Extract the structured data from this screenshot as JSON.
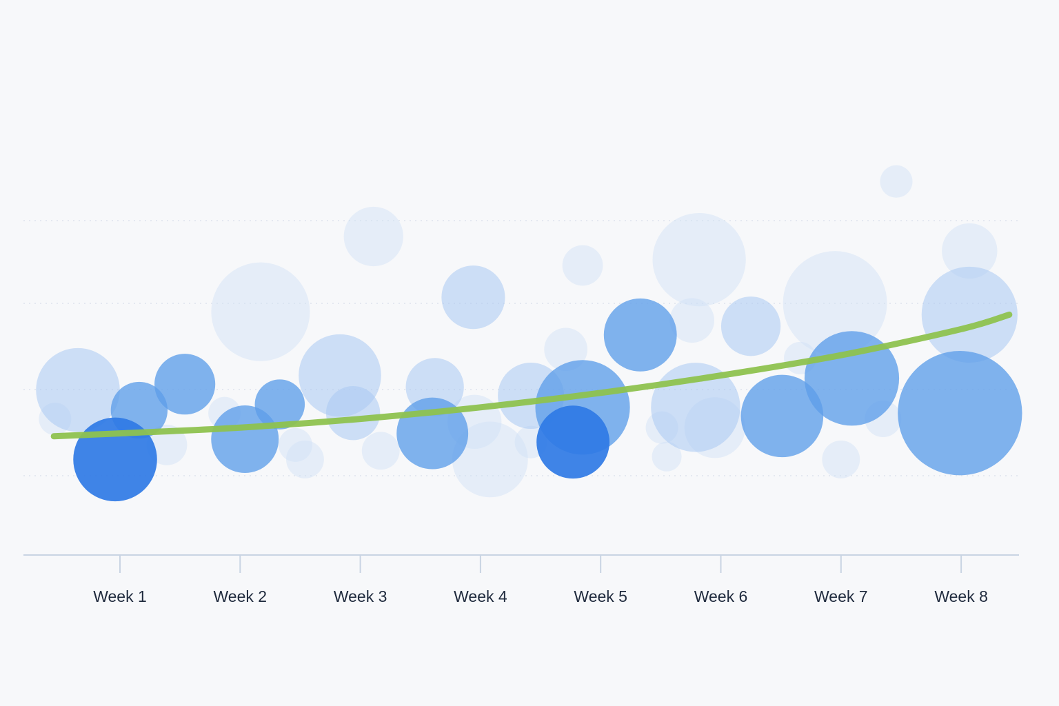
{
  "chart_data": {
    "type": "scatter",
    "title": "",
    "xlabel": "",
    "ylabel": "",
    "categories": [
      "Week 1",
      "Week 2",
      "Week 3",
      "Week 4",
      "Week 5",
      "Week 6",
      "Week 7",
      "Week 8"
    ],
    "x_range": [
      0.3,
      8.5
    ],
    "y_range": [
      0,
      100
    ],
    "grid": true,
    "legend": "none",
    "axis_color": "#c9d4e3",
    "grid_color": "#dde3ec",
    "trend_color": "#8ec24f",
    "bubble_colors": {
      "dark": "#2f7ae5",
      "mid": "#5d9de9",
      "light": "#a9c9f2",
      "pale": "#cfe0f7"
    },
    "series": [
      {
        "type": "bubble",
        "points": [
          {
            "x": 0.65,
            "y": 32,
            "size": 62,
            "tone": "light"
          },
          {
            "x": 0.46,
            "y": 22,
            "size": 24,
            "tone": "pale"
          },
          {
            "x": 1.16,
            "y": 25,
            "size": 42,
            "tone": "mid"
          },
          {
            "x": 1.39,
            "y": 13,
            "size": 30,
            "tone": "pale"
          },
          {
            "x": 1.54,
            "y": 34,
            "size": 45,
            "tone": "mid"
          },
          {
            "x": 0.96,
            "y": 8,
            "size": 62,
            "tone": "dark"
          },
          {
            "x": 1.87,
            "y": 24,
            "size": 24,
            "tone": "pale"
          },
          {
            "x": 2.17,
            "y": 59,
            "size": 73,
            "tone": "pale"
          },
          {
            "x": 2.33,
            "y": 27,
            "size": 37,
            "tone": "mid"
          },
          {
            "x": 2.04,
            "y": 15,
            "size": 50,
            "tone": "mid"
          },
          {
            "x": 2.46,
            "y": 13,
            "size": 25,
            "tone": "pale"
          },
          {
            "x": 2.54,
            "y": 8,
            "size": 28,
            "tone": "pale"
          },
          {
            "x": 2.83,
            "y": 37,
            "size": 61,
            "tone": "light"
          },
          {
            "x": 2.94,
            "y": 24,
            "size": 40,
            "tone": "light"
          },
          {
            "x": 3.11,
            "y": 85,
            "size": 44,
            "tone": "pale"
          },
          {
            "x": 3.17,
            "y": 11,
            "size": 28,
            "tone": "pale"
          },
          {
            "x": 3.6,
            "y": 17,
            "size": 53,
            "tone": "mid"
          },
          {
            "x": 3.62,
            "y": 33,
            "size": 43,
            "tone": "light"
          },
          {
            "x": 3.95,
            "y": 21,
            "size": 40,
            "tone": "pale"
          },
          {
            "x": 3.94,
            "y": 64,
            "size": 47,
            "tone": "light"
          },
          {
            "x": 4.08,
            "y": 8,
            "size": 56,
            "tone": "pale"
          },
          {
            "x": 4.42,
            "y": 30,
            "size": 49,
            "tone": "light"
          },
          {
            "x": 4.42,
            "y": 14,
            "size": 24,
            "tone": "pale"
          },
          {
            "x": 4.71,
            "y": 46,
            "size": 32,
            "tone": "pale"
          },
          {
            "x": 4.85,
            "y": 26,
            "size": 70,
            "tone": "mid"
          },
          {
            "x": 4.77,
            "y": 14,
            "size": 54,
            "tone": "dark"
          },
          {
            "x": 4.85,
            "y": 75,
            "size": 30,
            "tone": "pale"
          },
          {
            "x": 5.33,
            "y": 51,
            "size": 54,
            "tone": "mid"
          },
          {
            "x": 5.76,
            "y": 56,
            "size": 33,
            "tone": "pale"
          },
          {
            "x": 5.79,
            "y": 26,
            "size": 66,
            "tone": "light"
          },
          {
            "x": 5.51,
            "y": 19,
            "size": 24,
            "tone": "pale"
          },
          {
            "x": 5.55,
            "y": 9,
            "size": 22,
            "tone": "pale"
          },
          {
            "x": 5.82,
            "y": 77,
            "size": 69,
            "tone": "pale"
          },
          {
            "x": 5.95,
            "y": 19,
            "size": 45,
            "tone": "pale"
          },
          {
            "x": 6.25,
            "y": 54,
            "size": 44,
            "tone": "light"
          },
          {
            "x": 6.51,
            "y": 23,
            "size": 61,
            "tone": "mid"
          },
          {
            "x": 6.66,
            "y": 43,
            "size": 24,
            "tone": "pale"
          },
          {
            "x": 6.95,
            "y": 62,
            "size": 77,
            "tone": "pale"
          },
          {
            "x": 7.09,
            "y": 36,
            "size": 70,
            "tone": "mid"
          },
          {
            "x": 7.0,
            "y": 8,
            "size": 28,
            "tone": "pale"
          },
          {
            "x": 7.35,
            "y": 22,
            "size": 27,
            "tone": "pale"
          },
          {
            "x": 7.46,
            "y": 104,
            "size": 24,
            "tone": "pale"
          },
          {
            "x": 8.07,
            "y": 80,
            "size": 41,
            "tone": "pale"
          },
          {
            "x": 8.07,
            "y": 58,
            "size": 71,
            "tone": "light"
          },
          {
            "x": 7.99,
            "y": 24,
            "size": 92,
            "tone": "mid"
          }
        ]
      },
      {
        "type": "trend",
        "points": [
          {
            "x": 0.45,
            "y": 16
          },
          {
            "x": 1.0,
            "y": 17
          },
          {
            "x": 2.0,
            "y": 19
          },
          {
            "x": 3.0,
            "y": 22
          },
          {
            "x": 4.0,
            "y": 26
          },
          {
            "x": 5.0,
            "y": 31
          },
          {
            "x": 6.0,
            "y": 37
          },
          {
            "x": 7.0,
            "y": 44
          },
          {
            "x": 8.0,
            "y": 53
          },
          {
            "x": 8.4,
            "y": 58
          }
        ]
      }
    ]
  }
}
